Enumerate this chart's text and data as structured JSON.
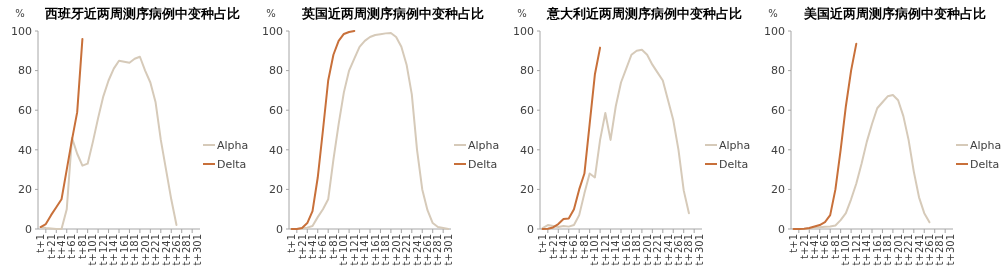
{
  "chart_data": [
    {
      "type": "line",
      "title": "西班牙近两周测序病例中变种占比",
      "ylabel": "%",
      "categories": [
        "t+1",
        null,
        "t+21",
        null,
        "t+41",
        null,
        "t+61",
        null,
        "t+81",
        null,
        "t+101",
        null,
        "t+121",
        null,
        "t+141",
        null,
        "t+161",
        null,
        "t+181",
        null,
        "t+201",
        null,
        "t+221",
        null,
        "t+241",
        null,
        "t+261",
        null,
        "t+281",
        null,
        "t+301"
      ],
      "ylim": [
        0,
        100
      ],
      "yticks": [
        0,
        20,
        40,
        60,
        80,
        100
      ],
      "legend": "right",
      "series": [
        {
          "name": "Alpha",
          "color": "#d6cab9",
          "values": [
            1,
            0.5,
            0.3,
            0,
            0,
            10,
            46,
            38,
            32,
            33,
            44,
            56,
            67,
            75,
            81,
            85,
            84.5,
            84,
            86,
            87,
            80,
            74,
            64,
            45,
            30,
            15,
            2,
            null,
            null,
            null,
            null
          ]
        },
        {
          "name": "Delta",
          "color": "#c8703a",
          "values": [
            1,
            2.5,
            7,
            11,
            15,
            30,
            45,
            59,
            96,
            null,
            null,
            null,
            null,
            null,
            null,
            null,
            null,
            null,
            null,
            null,
            null,
            null,
            null,
            null,
            null,
            null,
            null,
            null,
            null,
            null,
            null
          ]
        }
      ]
    },
    {
      "type": "line",
      "title": "英国近两周测序病例中变种占比",
      "ylabel": "%",
      "categories": [
        "t+1",
        null,
        "t+21",
        null,
        "t+41",
        null,
        "t+61",
        null,
        "t+81",
        null,
        "t+101",
        null,
        "t+121",
        null,
        "t+141",
        null,
        "t+161",
        null,
        "t+181",
        null,
        "t+201",
        null,
        "t+221",
        null,
        "t+241",
        null,
        "t+261",
        null,
        "t+281",
        null,
        "t+301"
      ],
      "ylim": [
        0,
        100
      ],
      "yticks": [
        0,
        20,
        40,
        60,
        80,
        100
      ],
      "legend": "right",
      "series": [
        {
          "name": "Alpha",
          "color": "#d6cab9",
          "values": [
            0,
            0,
            0.3,
            0.7,
            1.5,
            6,
            10,
            15,
            35,
            53,
            69,
            80,
            86,
            92,
            95,
            97,
            98,
            98.4,
            98.8,
            99,
            97,
            92,
            83,
            68,
            40,
            20,
            9.5,
            3,
            1,
            0.5,
            0
          ]
        },
        {
          "name": "Delta",
          "color": "#c8703a",
          "values": [
            0,
            0,
            0.5,
            3,
            9,
            26,
            50,
            75,
            88,
            95,
            98.5,
            99.5,
            100,
            null,
            null,
            null,
            null,
            null,
            null,
            null,
            null,
            null,
            null,
            null,
            null,
            null,
            null,
            null,
            null,
            null,
            null
          ]
        }
      ]
    },
    {
      "type": "line",
      "title": "意大利近两周测序病例中变种占比",
      "ylabel": "%",
      "categories": [
        "t+1",
        null,
        "t+21",
        null,
        "t+41",
        null,
        "t+61",
        null,
        "t+81",
        null,
        "t+101",
        null,
        "t+121",
        null,
        "t+141",
        null,
        "t+161",
        null,
        "t+181",
        null,
        "t+201",
        null,
        "t+221",
        null,
        "t+241",
        null,
        "t+261",
        null,
        "t+281",
        null,
        "t+301"
      ],
      "ylim": [
        0,
        100
      ],
      "yticks": [
        0,
        20,
        40,
        60,
        80,
        100
      ],
      "legend": "right",
      "series": [
        {
          "name": "Alpha",
          "color": "#d6cab9",
          "values": [
            0.5,
            2,
            1.5,
            1,
            1.5,
            1.2,
            2,
            7,
            18,
            28,
            26,
            45,
            58.6,
            45,
            62,
            74,
            81,
            88,
            90,
            90.5,
            88,
            83,
            79,
            75,
            65,
            55,
            40,
            19.5,
            8,
            null,
            null
          ]
        },
        {
          "name": "Delta",
          "color": "#c8703a",
          "values": [
            0,
            0.1,
            0.8,
            2.5,
            5,
            5.3,
            10,
            20,
            28,
            53,
            78,
            91.6,
            null,
            null,
            null,
            null,
            null,
            null,
            null,
            null,
            null,
            null,
            null,
            null,
            null,
            null,
            null,
            null,
            null,
            null,
            null
          ]
        }
      ]
    },
    {
      "type": "line",
      "title": "美国近两周测序病例中变种占比",
      "ylabel": "%",
      "categories": [
        "t+1",
        null,
        "t+21",
        null,
        "t+41",
        null,
        "t+61",
        null,
        "t+81",
        null,
        "t+101",
        null,
        "t+121",
        null,
        "t+141",
        null,
        "t+161",
        null,
        "t+181",
        null,
        "t+201",
        null,
        "t+221",
        null,
        "t+241",
        null,
        "t+261",
        null,
        "t+281",
        null,
        "t+301"
      ],
      "ylim": [
        0,
        100
      ],
      "yticks": [
        0,
        20,
        40,
        60,
        80,
        100
      ],
      "legend": "right",
      "series": [
        {
          "name": "Alpha",
          "color": "#d6cab9",
          "values": [
            0,
            0,
            0,
            0.2,
            0.7,
            0.9,
            1.1,
            1.3,
            1.8,
            4.5,
            8,
            15,
            23,
            33,
            44,
            53,
            61,
            64,
            67,
            67.7,
            65,
            57,
            45,
            29,
            16,
            8,
            3.4,
            null,
            null,
            null,
            null
          ]
        },
        {
          "name": "Delta",
          "color": "#c8703a",
          "values": [
            0,
            0,
            0.1,
            0.5,
            1.3,
            2,
            3.5,
            7,
            20,
            40,
            62,
            80,
            93.6,
            null,
            null,
            null,
            null,
            null,
            null,
            null,
            null,
            null,
            null,
            null,
            null,
            null,
            null,
            null,
            null,
            null,
            null
          ]
        }
      ]
    }
  ]
}
